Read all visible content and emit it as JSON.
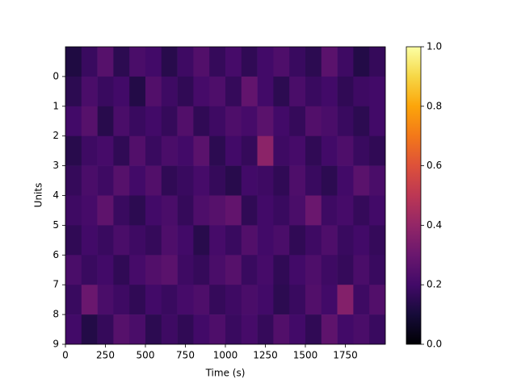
{
  "chart_data": {
    "type": "heatmap",
    "xlabel": "Time (s)",
    "ylabel": "Units",
    "x": [
      0,
      100,
      200,
      300,
      400,
      500,
      600,
      700,
      800,
      900,
      1000,
      1100,
      1200,
      1300,
      1400,
      1500,
      1600,
      1700,
      1800,
      1900,
      2000
    ],
    "y": [
      -1,
      0,
      1,
      2,
      3,
      4,
      5,
      6,
      7,
      8,
      9
    ],
    "z": [
      [
        0.12,
        0.18,
        0.25,
        0.15,
        0.22,
        0.2,
        0.14,
        0.19,
        0.24,
        0.17,
        0.21,
        0.16,
        0.2,
        0.23,
        0.18,
        0.15,
        0.26,
        0.19,
        0.13,
        0.17
      ],
      [
        0.15,
        0.22,
        0.18,
        0.2,
        0.13,
        0.24,
        0.19,
        0.16,
        0.21,
        0.23,
        0.17,
        0.28,
        0.2,
        0.15,
        0.22,
        0.18,
        0.2,
        0.16,
        0.19,
        0.2
      ],
      [
        0.2,
        0.25,
        0.14,
        0.22,
        0.18,
        0.2,
        0.17,
        0.24,
        0.16,
        0.19,
        0.23,
        0.21,
        0.26,
        0.2,
        0.17,
        0.24,
        0.22,
        0.18,
        0.15,
        0.2
      ],
      [
        0.14,
        0.19,
        0.21,
        0.16,
        0.24,
        0.18,
        0.22,
        0.2,
        0.26,
        0.15,
        0.2,
        0.17,
        0.38,
        0.19,
        0.21,
        0.16,
        0.2,
        0.23,
        0.18,
        0.16
      ],
      [
        0.17,
        0.22,
        0.19,
        0.25,
        0.2,
        0.24,
        0.16,
        0.18,
        0.21,
        0.17,
        0.14,
        0.2,
        0.19,
        0.16,
        0.23,
        0.18,
        0.15,
        0.2,
        0.26,
        0.22
      ],
      [
        0.19,
        0.21,
        0.27,
        0.18,
        0.15,
        0.2,
        0.22,
        0.17,
        0.23,
        0.25,
        0.28,
        0.16,
        0.2,
        0.18,
        0.22,
        0.3,
        0.19,
        0.21,
        0.17,
        0.2
      ],
      [
        0.16,
        0.2,
        0.18,
        0.22,
        0.19,
        0.17,
        0.23,
        0.2,
        0.14,
        0.21,
        0.18,
        0.24,
        0.2,
        0.22,
        0.16,
        0.19,
        0.23,
        0.18,
        0.2,
        0.17
      ],
      [
        0.22,
        0.18,
        0.2,
        0.16,
        0.21,
        0.24,
        0.26,
        0.19,
        0.17,
        0.22,
        0.25,
        0.18,
        0.21,
        0.16,
        0.2,
        0.23,
        0.19,
        0.17,
        0.22,
        0.18
      ],
      [
        0.18,
        0.3,
        0.22,
        0.19,
        0.16,
        0.2,
        0.18,
        0.21,
        0.23,
        0.17,
        0.19,
        0.22,
        0.2,
        0.15,
        0.18,
        0.24,
        0.2,
        0.36,
        0.19,
        0.24
      ],
      [
        0.2,
        0.13,
        0.17,
        0.25,
        0.22,
        0.15,
        0.19,
        0.16,
        0.2,
        0.23,
        0.18,
        0.21,
        0.17,
        0.24,
        0.2,
        0.16,
        0.27,
        0.2,
        0.22,
        0.18
      ]
    ],
    "colormap": "inferno",
    "clim": [
      0,
      1
    ],
    "xlim": [
      0,
      2000
    ],
    "ylim": [
      9,
      -1
    ],
    "xticks": [
      0,
      250,
      500,
      750,
      1000,
      1250,
      1500,
      1750
    ],
    "yticks": [
      0,
      1,
      2,
      3,
      4,
      5,
      6,
      7,
      8,
      9
    ],
    "cticks": [
      {
        "value": 0,
        "label": "0.0"
      },
      {
        "value": 0.2,
        "label": "0.2"
      },
      {
        "value": 0.4,
        "label": "0.4"
      },
      {
        "value": 0.6,
        "label": "0.6"
      },
      {
        "value": 0.8,
        "label": "0.8"
      },
      {
        "value": 1,
        "label": "1.0"
      }
    ]
  }
}
